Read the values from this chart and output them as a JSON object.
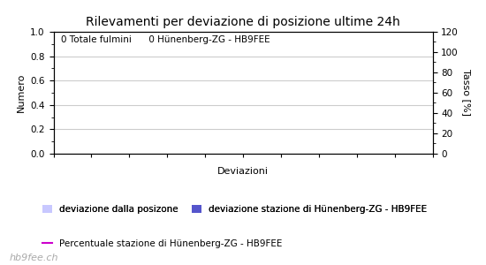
{
  "title": "Rilevamenti per deviazione di posizione ultime 24h",
  "annotation_text": "0 Totale fulmini      0 Hünenberg-ZG - HB9FEE",
  "xlabel": "Deviazioni",
  "ylabel_left": "Numero",
  "ylabel_right": "Tasso [%]",
  "ylim_left": [
    0.0,
    1.0
  ],
  "ylim_right": [
    0,
    120
  ],
  "yticks_left": [
    0.0,
    0.2,
    0.4,
    0.6,
    0.8,
    1.0
  ],
  "yticks_right": [
    0,
    20,
    40,
    60,
    80,
    100,
    120
  ],
  "num_xticks": 10,
  "background_color": "#ffffff",
  "plot_bg_color": "#ffffff",
  "grid_color": "#cccccc",
  "title_fontsize": 10,
  "axis_fontsize": 8,
  "tick_fontsize": 7.5,
  "annotation_fontsize": 7.5,
  "legend_fontsize": 7.5,
  "watermark_fontsize": 8,
  "legend_row1": [
    {
      "label": "deviazione dalla posizone",
      "color": "#c8c8ff",
      "type": "patch"
    },
    {
      "label": "deviazione stazione di Hünenberg-ZG - HB9FEE",
      "color": "#5555cc",
      "type": "patch"
    }
  ],
  "legend_row2": [
    {
      "label": "Percentuale stazione di Hünenberg-ZG - HB9FEE",
      "color": "#cc00cc",
      "type": "line"
    }
  ],
  "watermark": "hb9fee.ch"
}
